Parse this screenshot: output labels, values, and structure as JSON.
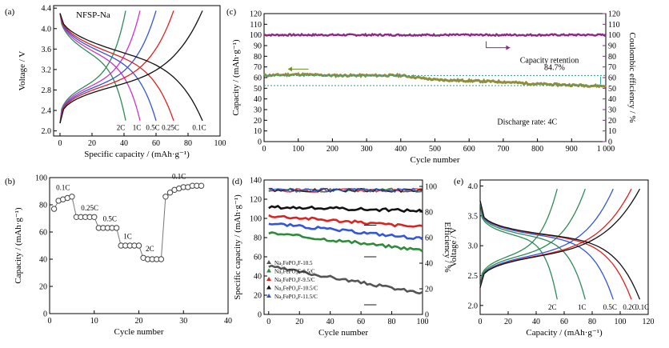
{
  "figure": {
    "panel_labels": [
      "(a)",
      "(b)",
      "(c)",
      "(d)",
      "(e)"
    ]
  },
  "chart_data": [
    {
      "id": "a",
      "type": "line",
      "annotation": "NFSP-Na",
      "xlabel": "Specific capacity / (mAh·g⁻¹)",
      "ylabel": "Voltage / V",
      "xlim": [
        -4,
        100
      ],
      "ylim": [
        1.9,
        4.45
      ],
      "xticks": [
        0,
        20,
        40,
        60,
        80,
        100
      ],
      "yticks": [
        2.0,
        2.4,
        2.8,
        3.2,
        3.6,
        4.0,
        4.4
      ],
      "xtick_labels": [
        "0",
        "20",
        "40",
        "60",
        "80",
        "100"
      ],
      "ytick_labels": [
        "2.0",
        "2.4",
        "2.8",
        "3.2",
        "3.6",
        "4.0",
        "4.4"
      ],
      "series": [
        {
          "name": "2C",
          "color": "#2e8b57",
          "max_capacity": 41
        },
        {
          "name": "1C",
          "color": "#cc33cc",
          "max_capacity": 50
        },
        {
          "name": "0.5C",
          "color": "#3355dd",
          "max_capacity": 60
        },
        {
          "name": "0.25C",
          "color": "#dd2222",
          "max_capacity": 71
        },
        {
          "name": "0.1C",
          "color": "#111111",
          "max_capacity": 89
        }
      ]
    },
    {
      "id": "b",
      "type": "scatter",
      "xlabel": "Cycle number",
      "ylabel": "Capacity / (mAh·g⁻¹)",
      "xlim": [
        0,
        40
      ],
      "ylim": [
        0,
        100
      ],
      "xticks": [
        0,
        10,
        20,
        30,
        40
      ],
      "yticks": [
        0,
        20,
        40,
        60,
        80,
        100
      ],
      "xtick_labels": [
        "0",
        "10",
        "20",
        "30",
        "40"
      ],
      "ytick_labels": [
        "0",
        "20",
        "40",
        "60",
        "80",
        "100"
      ],
      "rate_labels": [
        "0.1C",
        "0.25C",
        "0.5C",
        "1C",
        "2C",
        "0.1C"
      ],
      "x": [
        1,
        2,
        3,
        4,
        5,
        6,
        7,
        8,
        9,
        10,
        11,
        12,
        13,
        14,
        15,
        16,
        17,
        18,
        19,
        20,
        21,
        22,
        23,
        24,
        25,
        26,
        27,
        28,
        29,
        30,
        31,
        32,
        33,
        34
      ],
      "values": [
        77,
        83,
        84,
        85,
        86,
        71,
        71,
        71,
        71,
        71,
        63,
        63,
        63,
        63,
        63,
        50,
        50,
        50,
        50,
        50,
        41,
        40,
        40,
        40,
        40,
        86,
        89,
        91,
        92,
        93,
        93,
        94,
        94,
        94
      ]
    },
    {
      "id": "c",
      "type": "scatter",
      "xlabel": "Cycle number",
      "ylabel": "Capacity / (mAh·g⁻¹)",
      "y2label": "Coulombic efficiency / %",
      "xlim": [
        0,
        1000
      ],
      "ylim": [
        0,
        120
      ],
      "y2lim": [
        0,
        120
      ],
      "xticks": [
        0,
        100,
        200,
        300,
        400,
        500,
        600,
        700,
        800,
        900,
        1000
      ],
      "yticks": [
        0,
        10,
        20,
        30,
        40,
        50,
        60,
        70,
        80,
        90,
        100,
        110,
        120
      ],
      "xtick_labels": [
        "0",
        "100",
        "200",
        "300",
        "400",
        "500",
        "600",
        "700",
        "800",
        "900",
        "1 000"
      ],
      "ytick_labels": [
        "0",
        "10",
        "20",
        "30",
        "40",
        "50",
        "60",
        "70",
        "80",
        "90",
        "100",
        "110",
        "120"
      ],
      "y2tick_labels": [
        "0",
        "10",
        "20",
        "30",
        "40",
        "50",
        "60",
        "70",
        "80",
        "90",
        "100",
        "110",
        "120"
      ],
      "retention_label": "Capacity retention",
      "retention_value": "84.7%",
      "rate_text": "Discharge rate: 4C",
      "capacity_color": "#8f8f3a",
      "efficiency_color": "#8b2a86",
      "capacity_points": [
        [
          0,
          62
        ],
        [
          100,
          63
        ],
        [
          200,
          62
        ],
        [
          300,
          62
        ],
        [
          400,
          62
        ],
        [
          500,
          58
        ],
        [
          600,
          57
        ],
        [
          700,
          56
        ],
        [
          800,
          54
        ],
        [
          900,
          53
        ],
        [
          1000,
          52
        ]
      ],
      "efficiency": 100
    },
    {
      "id": "d",
      "type": "scatter",
      "xlabel": "Cycle number",
      "ylabel": "Specific capacity / (mAh·g⁻¹)",
      "y2label": "Efficiency / %",
      "xlim": [
        -3,
        100
      ],
      "ylim": [
        0,
        140
      ],
      "y2lim": [
        0,
        105
      ],
      "xticks": [
        0,
        20,
        40,
        60,
        80,
        100
      ],
      "yticks": [
        0,
        20,
        40,
        60,
        80,
        100,
        120,
        140
      ],
      "y2ticks": [
        0,
        20,
        40,
        60,
        80,
        100
      ],
      "xtick_labels": [
        "0",
        "20",
        "40",
        "60",
        "80",
        "100"
      ],
      "ytick_labels": [
        "0",
        "20",
        "40",
        "60",
        "80",
        "100",
        "120",
        "140"
      ],
      "y2tick_labels": [
        "0",
        "20",
        "40",
        "60",
        "80",
        "100"
      ],
      "series": [
        {
          "name": "Na₂FePO₄F-10.5",
          "color": "#555555",
          "start": 50,
          "end": 22
        },
        {
          "name": "Na₂FePO₄F-8.5/C",
          "color": "#2f8a3a",
          "start": 85,
          "end": 67
        },
        {
          "name": "Na₂FePO₄F-9.5/C",
          "color": "#dd2222",
          "start": 103,
          "end": 91
        },
        {
          "name": "Na₂FePO₄F-10.5/C",
          "color": "#111111",
          "start": 112,
          "end": 108
        },
        {
          "name": "Na₂FePO₄F-11.5/C",
          "color": "#3355dd",
          "start": 95,
          "end": 79
        }
      ],
      "efficiency": 97
    },
    {
      "id": "e",
      "type": "line",
      "xlabel": "Capacity / (mAh·g⁻¹)",
      "ylabel": "Voltage / V",
      "xlim": [
        0,
        120
      ],
      "ylim": [
        1.85,
        4.1
      ],
      "xticks": [
        0,
        20,
        40,
        60,
        80,
        100,
        120
      ],
      "yticks": [
        2.0,
        2.5,
        3.0,
        3.5,
        4.0
      ],
      "xtick_labels": [
        "0",
        "20",
        "40",
        "60",
        "80",
        "100",
        "120"
      ],
      "ytick_labels": [
        "2.0",
        "2.5",
        "3.0",
        "3.5",
        "4.0"
      ],
      "series": [
        {
          "name": "2C",
          "color": "#2e8b57",
          "max_capacity": 55
        },
        {
          "name": "1C",
          "color": "#2e8b57",
          "max_capacity": 75
        },
        {
          "name": "0.5C",
          "color": "#3355dd",
          "max_capacity": 95
        },
        {
          "name": "0.2C",
          "color": "#dd2222",
          "max_capacity": 108
        },
        {
          "name": "0.1C",
          "color": "#111111",
          "max_capacity": 114
        }
      ]
    }
  ]
}
